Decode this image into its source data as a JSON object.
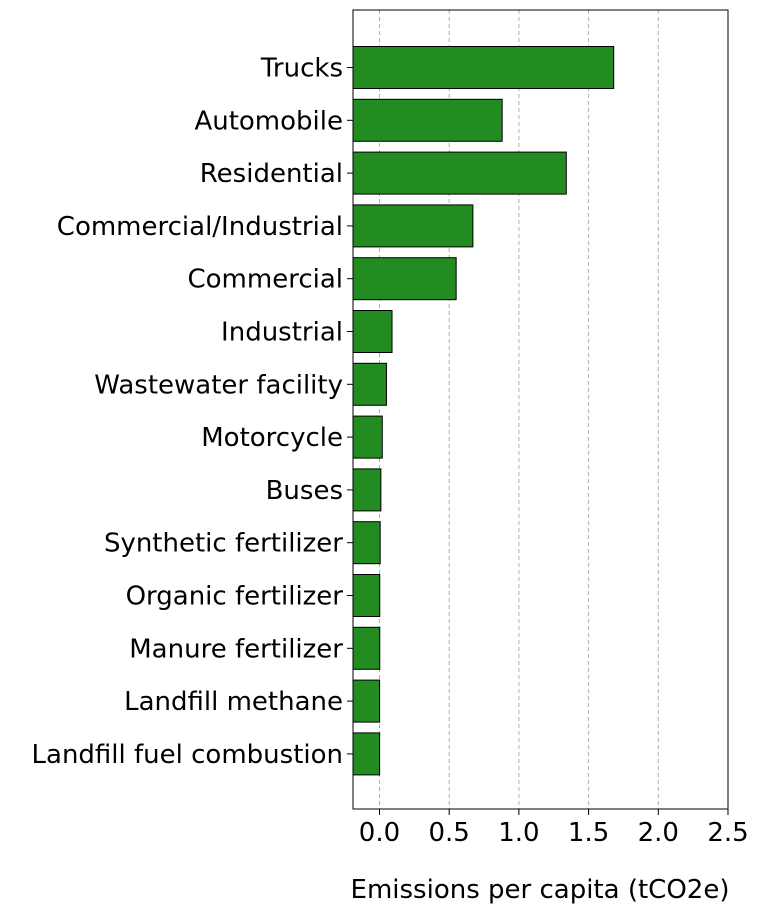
{
  "chart_data": {
    "type": "bar",
    "orientation": "horizontal",
    "categories": [
      "Trucks",
      "Automobile",
      "Residential",
      "Commercial/Industrial",
      "Commercial",
      "Industrial",
      "Wastewater facility",
      "Motorcycle",
      "Buses",
      "Synthetic fertilizer",
      "Organic fertilizer",
      "Manure fertilizer",
      "Landfill methane",
      "Landfill fuel combustion"
    ],
    "values": [
      1.68,
      0.88,
      1.34,
      0.67,
      0.55,
      0.09,
      0.05,
      0.02,
      0.01,
      0.005,
      0.002,
      0.002,
      0.001,
      0.001
    ],
    "xlabel": "Emissions per capita (tCO2e)",
    "ylabel": "",
    "xlim": [
      -0.19,
      2.5
    ],
    "xticks": [
      0.0,
      0.5,
      1.0,
      1.5,
      2.0,
      2.5
    ],
    "xtick_labels": [
      "0.0",
      "0.5",
      "1.0",
      "1.5",
      "2.0",
      "2.5"
    ],
    "grid": "x, dashed",
    "bar_color": "#228b22",
    "edge_color": "#000000",
    "grid_color": "#b0b0b0"
  }
}
